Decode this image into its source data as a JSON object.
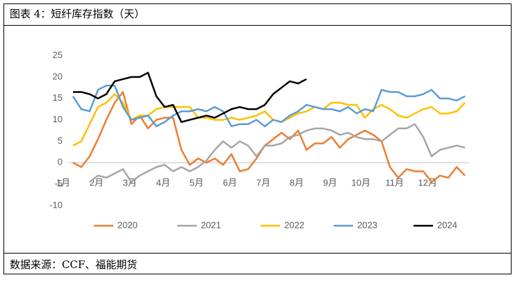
{
  "chart_data": {
    "type": "line",
    "title": "图表 4：短纤库存指数（天）",
    "source": "数据来源：CCF、福能期货",
    "categories": [
      "1月",
      null,
      null,
      null,
      "2月",
      null,
      null,
      null,
      "3月",
      null,
      null,
      null,
      "4月",
      null,
      null,
      null,
      "5月",
      null,
      null,
      null,
      "6月",
      null,
      null,
      null,
      "7月",
      null,
      null,
      null,
      "8月",
      null,
      null,
      null,
      "9月",
      null,
      null,
      null,
      "10月",
      null,
      null,
      null,
      "11月",
      null,
      null,
      null,
      "12月",
      null,
      null,
      null
    ],
    "series": [
      {
        "name": "2020",
        "color": "#ED7D31",
        "values": [
          0,
          -1,
          1.5,
          5.5,
          10,
          14,
          16.5,
          9,
          11,
          8,
          10,
          10.5,
          10.5,
          3,
          -0.5,
          1,
          0,
          1,
          -0.5,
          2,
          -2,
          -1.5,
          1,
          4,
          5.5,
          7,
          5.5,
          7.5,
          3,
          4.5,
          4.5,
          6,
          3.5,
          5.5,
          6.5,
          7.5,
          6.5,
          5,
          -1,
          -3.5,
          -1.5,
          -2,
          -2,
          -4.5,
          -3,
          -3.5,
          -1,
          -3
        ]
      },
      {
        "name": "2021",
        "color": "#A5A5A5",
        "values": [
          null,
          null,
          -4.5,
          -3,
          -3.5,
          -2.5,
          -1.5,
          -4.5,
          -3,
          -2,
          -1,
          -0.5,
          -2,
          -1,
          -2,
          -1,
          0.5,
          3,
          5,
          3.5,
          5,
          4,
          1.5,
          4,
          4,
          4.5,
          6,
          6.5,
          7.5,
          8,
          8,
          7.5,
          6.5,
          7,
          6,
          5.5,
          5.5,
          5,
          6.5,
          8,
          8,
          9,
          6,
          1.5,
          3,
          3.5,
          4,
          3.5
        ]
      },
      {
        "name": "2022",
        "color": "#FFC000",
        "values": [
          4,
          5,
          9,
          13,
          14,
          16,
          14,
          10,
          11,
          11,
          12.5,
          13,
          13,
          13,
          13,
          10.5,
          10.5,
          10,
          10,
          10.5,
          10,
          10.5,
          11,
          12,
          10,
          9.5,
          10.5,
          11.5,
          12,
          13,
          12.5,
          14,
          14,
          13.5,
          13.5,
          10.5,
          12.5,
          13.5,
          12.5,
          11,
          10.5,
          11.5,
          12.5,
          13,
          11.5,
          11.5,
          12,
          14
        ]
      },
      {
        "name": "2023",
        "color": "#5B9BD5",
        "values": [
          15.5,
          12.5,
          12,
          17,
          18,
          18,
          13,
          10,
          10.5,
          11,
          8.5,
          9.5,
          11,
          12,
          12,
          12.5,
          12,
          13,
          12,
          8.5,
          9,
          9,
          10,
          8.5,
          10,
          9.5,
          11,
          12,
          13.5,
          13,
          12.5,
          12.5,
          12,
          13,
          11.5,
          12.5,
          12,
          17,
          16.5,
          16.5,
          15.5,
          15.5,
          16,
          17,
          15,
          15,
          14.5,
          15.5
        ]
      },
      {
        "name": "2024",
        "color": "#000000",
        "values": [
          16.5,
          16.5,
          16,
          15,
          16,
          19,
          19.5,
          20,
          20,
          21,
          15.5,
          13,
          13.5,
          9.5,
          10,
          10.5,
          11,
          10.5,
          11.5,
          12.5,
          13,
          12.5,
          12.5,
          13.5,
          16,
          17.5,
          19,
          18.5,
          19.5,
          null,
          null,
          null,
          null,
          null,
          null,
          null,
          null,
          null,
          null,
          null,
          null,
          null,
          null,
          null,
          null,
          null,
          null,
          null
        ]
      }
    ],
    "ylim": [
      -10,
      25
    ],
    "yticks": [
      -10,
      -5,
      0,
      5,
      10,
      15,
      20,
      25
    ]
  }
}
